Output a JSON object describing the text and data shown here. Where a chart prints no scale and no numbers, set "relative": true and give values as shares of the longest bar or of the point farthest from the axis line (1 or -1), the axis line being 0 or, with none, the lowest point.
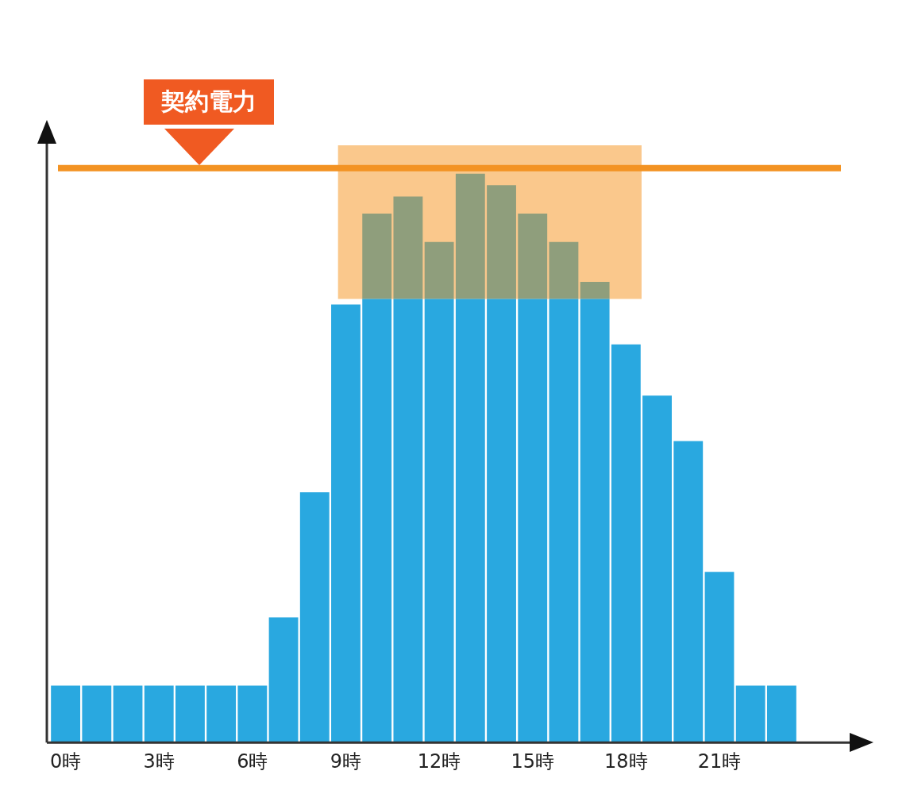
{
  "chart_data": {
    "type": "bar",
    "relative": true,
    "stacked": true,
    "categories": [
      "0時",
      null,
      null,
      "3時",
      null,
      null,
      "6時",
      null,
      null,
      "9時",
      null,
      null,
      "12時",
      null,
      null,
      "15時",
      null,
      null,
      "18時",
      null,
      null,
      "21時",
      null,
      null
    ],
    "series": [
      {
        "color": "#29a8e0",
        "values": [
          0.1,
          0.1,
          0.1,
          0.1,
          0.1,
          0.1,
          0.1,
          0.22,
          0.44,
          0.77,
          0.78,
          0.78,
          0.78,
          0.78,
          0.78,
          0.78,
          0.78,
          0.78,
          0.7,
          0.61,
          0.53,
          0.3,
          0.1,
          0.1
        ]
      },
      {
        "color": "#8f9e7c",
        "values": [
          null,
          null,
          null,
          null,
          null,
          null,
          null,
          null,
          null,
          null,
          0.15,
          0.18,
          0.1,
          0.22,
          0.2,
          0.15,
          0.1,
          0.03,
          null,
          null,
          null,
          null,
          null,
          null
        ]
      }
    ],
    "ref_lines": [
      {
        "axis": "y",
        "value": 1.01,
        "label": "契約電力",
        "color": "#f39323"
      }
    ],
    "bands": [
      {
        "axis": "y",
        "from": 0.78,
        "to": 1.05,
        "color": "#f7a440"
      }
    ],
    "grid": false,
    "legend": false
  }
}
